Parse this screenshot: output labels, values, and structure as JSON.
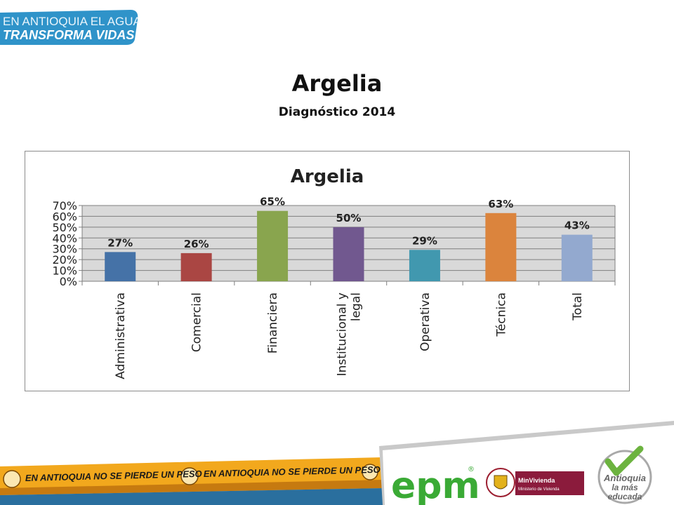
{
  "header": {
    "logo_line1": "EN ANTIOQUIA EL AGUA",
    "logo_line2": "TRANSFORMA VIDAS"
  },
  "slide": {
    "title": "Argelia",
    "subtitle": "Diagnóstico 2014"
  },
  "chart_data": {
    "type": "bar",
    "title": "Argelia",
    "categories": [
      "Administrativa",
      "Comercial",
      "Financiera",
      "Institucional y legal",
      "Operativa",
      "Técnica",
      "Total"
    ],
    "values": [
      27,
      26,
      65,
      50,
      29,
      63,
      43
    ],
    "data_labels": [
      "27%",
      "26%",
      "65%",
      "50%",
      "29%",
      "63%",
      "43%"
    ],
    "colors": [
      "#4572a7",
      "#aa4643",
      "#89a54e",
      "#71588f",
      "#4198af",
      "#db843d",
      "#93a9cf"
    ],
    "ylim": [
      0,
      70
    ],
    "yticks": [
      0,
      10,
      20,
      30,
      40,
      50,
      60,
      70
    ],
    "ytick_labels": [
      "0%",
      "10%",
      "20%",
      "30%",
      "40%",
      "50%",
      "60%",
      "70%"
    ],
    "grid": true,
    "legend": "none",
    "plot_background": "#d9d9d9"
  },
  "footer": {
    "banner_text_1": "EN ANTIOQUIA NO SE PIERDE UN PESO",
    "banner_text_2": "EN ANTIOQUIA NO SE PIERDE UN PESO",
    "epm_logo": "epm",
    "minvivienda_name": "MinVivienda",
    "minvivienda_sub": "Ministerio de Vivienda",
    "edu_logo_line1": "Antioquia",
    "edu_logo_line2": "la más",
    "edu_logo_line3": "educada"
  }
}
